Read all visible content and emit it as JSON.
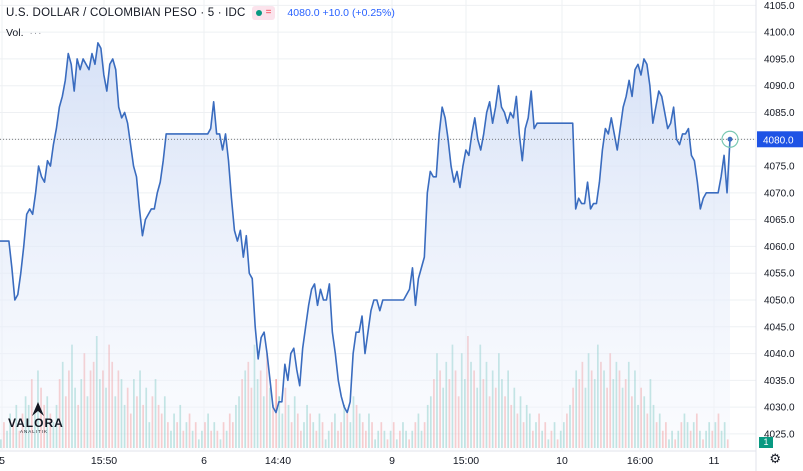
{
  "header": {
    "symbol_title": "U.S. DOLLAR / COLOMBIAN PESO · 5 · IDC",
    "equal_sign": "=",
    "quote": "4080.0  +10.0 (+0.25%)",
    "volume_label": "Vol.",
    "volume_dots": "···"
  },
  "logo": {
    "name": "VALORA",
    "tagline": "ANALITIK"
  },
  "volume_badge": "1",
  "colors": {
    "line": "#3a6cbf",
    "area_top": "#cfdcf5",
    "area_bottom": "#f4f7fd",
    "vol_up": "#26a69a",
    "vol_down": "#ef5350",
    "grid": "#eef0f3",
    "last_price_badge": "#1e53e5"
  },
  "chart_data": {
    "type": "line",
    "title": "U.S. DOLLAR / COLOMBIAN PESO · 5 · IDC",
    "xlabel": "",
    "ylabel": "",
    "ylim": [
      4022,
      4106
    ],
    "y_ticks": [
      4025.0,
      4030.0,
      4035.0,
      4040.0,
      4045.0,
      4050.0,
      4055.0,
      4060.0,
      4065.0,
      4070.0,
      4075.0,
      4080.0,
      4085.0,
      4090.0,
      4095.0,
      4100.0,
      4105.0
    ],
    "x_ticks": [
      "5",
      "15:50",
      "6",
      "14:40",
      "9",
      "15:00",
      "10",
      "16:00",
      "11"
    ],
    "last_price": 4080.0,
    "grid": true,
    "series": [
      {
        "values": [
          4061,
          4061,
          4061,
          4061,
          4056,
          4050,
          4051,
          4055,
          4060,
          4066,
          4067,
          4066,
          4070,
          4075,
          4073,
          4072,
          4076,
          4075,
          4079,
          4082,
          4086,
          4088,
          4091,
          4096,
          4094,
          4089,
          4095,
          4093,
          4095,
          4094,
          4093,
          4096,
          4094,
          4098,
          4097,
          4092,
          4089,
          4094,
          4095,
          4093,
          4086,
          4084,
          4085,
          4083,
          4079,
          4075,
          4073,
          4067,
          4062,
          4065,
          4066,
          4067,
          4067,
          4070,
          4072,
          4076,
          4081,
          4081,
          4081,
          4081,
          4081,
          4081,
          4081,
          4081,
          4081,
          4081,
          4081,
          4081,
          4081,
          4081,
          4081,
          4082,
          4087,
          4081,
          4081,
          4078,
          4081,
          4076,
          4069,
          4063,
          4061,
          4063,
          4058,
          4062,
          4055,
          4054,
          4045,
          4039,
          4043,
          4044,
          4040,
          4035,
          4030,
          4029,
          4031,
          4031,
          4038,
          4035,
          4040,
          4041,
          4037,
          4034,
          4041,
          4045,
          4049,
          4052,
          4053,
          4049,
          4052,
          4050,
          4050,
          4053,
          4044,
          4040,
          4035,
          4032,
          4030,
          4029,
          4031,
          4040,
          4044,
          4044,
          4047,
          4040,
          4044,
          4048,
          4050,
          4050,
          4048,
          4050,
          4050,
          4050,
          4050,
          4050,
          4050,
          4050,
          4050,
          4051,
          4052,
          4056,
          4049,
          4054,
          4056,
          4058,
          4070,
          4074,
          4073,
          4073,
          4081,
          4086,
          4084,
          4080,
          4075,
          4072,
          4074,
          4071,
          4075,
          4078,
          4077,
          4081,
          4084,
          4080,
          4078,
          4081,
          4085,
          4087,
          4083,
          4086,
          4090,
          4086,
          4085,
          4083,
          4085,
          4084,
          4088,
          4081,
          4076,
          4082,
          4084,
          4089,
          4082,
          4083,
          4083,
          4083,
          4083,
          4083,
          4083,
          4083,
          4083,
          4083,
          4083,
          4083,
          4083,
          4083,
          4067,
          4069,
          4068,
          4068,
          4072,
          4067,
          4068,
          4068,
          4072,
          4078,
          4082,
          4081,
          4084,
          4081,
          4078,
          4082,
          4086,
          4088,
          4091,
          4088,
          4093,
          4094,
          4092,
          4095,
          4094,
          4090,
          4083,
          4086,
          4089,
          4088,
          4085,
          4082,
          4083,
          4086,
          4080,
          4079,
          4081,
          4081,
          4082,
          4077,
          4076,
          4072,
          4067,
          4069,
          4070,
          4070,
          4070,
          4070,
          4070,
          4073,
          4077,
          4070,
          4080
        ]
      }
    ],
    "volume": [
      1,
      3,
      2,
      4,
      3,
      5,
      2,
      4,
      6,
      5,
      8,
      4,
      9,
      7,
      5,
      6,
      4,
      3,
      5,
      8,
      10,
      6,
      9,
      12,
      7,
      5,
      8,
      11,
      6,
      9,
      10,
      13,
      8,
      9,
      7,
      12,
      10,
      6,
      9,
      8,
      5,
      7,
      4,
      8,
      6,
      9,
      5,
      7,
      3,
      6,
      8,
      5,
      4,
      6,
      3,
      2,
      4,
      3,
      5,
      2,
      3,
      4,
      2,
      3,
      1,
      2,
      3,
      4,
      2,
      3,
      2,
      1,
      3,
      2,
      4,
      3,
      5,
      6,
      8,
      9,
      10,
      7,
      12,
      8,
      9,
      6,
      11,
      7,
      5,
      8,
      6,
      4,
      7,
      5,
      3,
      6,
      4,
      2,
      3,
      5,
      4,
      3,
      2,
      4,
      3,
      1,
      2,
      3,
      4,
      2,
      3,
      5,
      4,
      3,
      6,
      5,
      4,
      3,
      2,
      4,
      3,
      1,
      2,
      3,
      2,
      1,
      2,
      3,
      1,
      2,
      3,
      2,
      1,
      2,
      3,
      4,
      2,
      3,
      5,
      6,
      8,
      11,
      9,
      7,
      10,
      8,
      12,
      9,
      6,
      11,
      8,
      13,
      10,
      9,
      7,
      12,
      8,
      10,
      6,
      9,
      7,
      11,
      8,
      6,
      9,
      5,
      7,
      4,
      6,
      3,
      5,
      4,
      2,
      3,
      4,
      2,
      3,
      1,
      2,
      3,
      1,
      2,
      3,
      4,
      5,
      7,
      9,
      8,
      10,
      7,
      11,
      9,
      8,
      12,
      10,
      9,
      7,
      11,
      8,
      10,
      9,
      7,
      8,
      10,
      6,
      9,
      5,
      7,
      6,
      4,
      8,
      5,
      3,
      4,
      2,
      3,
      1,
      2,
      1,
      2,
      3,
      4,
      3,
      2,
      3,
      4,
      2,
      1,
      2,
      3,
      2,
      3,
      4,
      2,
      3,
      1
    ],
    "volume_up_flags": [
      1,
      0,
      1,
      1,
      0,
      1,
      0,
      0,
      1,
      1,
      0,
      1,
      1,
      0,
      0,
      1,
      0,
      1,
      1,
      0,
      1,
      0,
      0,
      1,
      1,
      0,
      1,
      0,
      1,
      0,
      0,
      1,
      1,
      0,
      1,
      0,
      0,
      1,
      0,
      1,
      1,
      0,
      0,
      1,
      0,
      1,
      0,
      1,
      1,
      0,
      1,
      0,
      0,
      1,
      0,
      1,
      1,
      0,
      1,
      0,
      1,
      0,
      1,
      0,
      1,
      1,
      0,
      1,
      0,
      1,
      0,
      1,
      0,
      1,
      0,
      0,
      1,
      1,
      0,
      1,
      0,
      0,
      1,
      1,
      0,
      1,
      0,
      1,
      0,
      0,
      1,
      1,
      0,
      1,
      0,
      1,
      0,
      0,
      1,
      1,
      0,
      1,
      0,
      1,
      0,
      1,
      1,
      0,
      1,
      0,
      0,
      1,
      0,
      1,
      1,
      0,
      1,
      0,
      0,
      1,
      0,
      1,
      1,
      0,
      1,
      0,
      1,
      0,
      1,
      0,
      1,
      1,
      0,
      1,
      0,
      1,
      1,
      0,
      1,
      1,
      0,
      1,
      0,
      1,
      1,
      0,
      1,
      0,
      0,
      1,
      1,
      0,
      1,
      0,
      1,
      1,
      0,
      1,
      0,
      1,
      0,
      1,
      1,
      0,
      1,
      0,
      1,
      0,
      1,
      0,
      1,
      1,
      0,
      1,
      0,
      1,
      0,
      1,
      0,
      1,
      0,
      1,
      1,
      0,
      1,
      0,
      1,
      0,
      0,
      1,
      1,
      0,
      1,
      1,
      0,
      1,
      0,
      0,
      1,
      1,
      0,
      1,
      0,
      1,
      0,
      1,
      1,
      0,
      1,
      0,
      1,
      1,
      0,
      1,
      0,
      0,
      1,
      1,
      0,
      1,
      0,
      1,
      1,
      0,
      1,
      0,
      1,
      0,
      1,
      1,
      0,
      1,
      0,
      1,
      1
    ]
  }
}
